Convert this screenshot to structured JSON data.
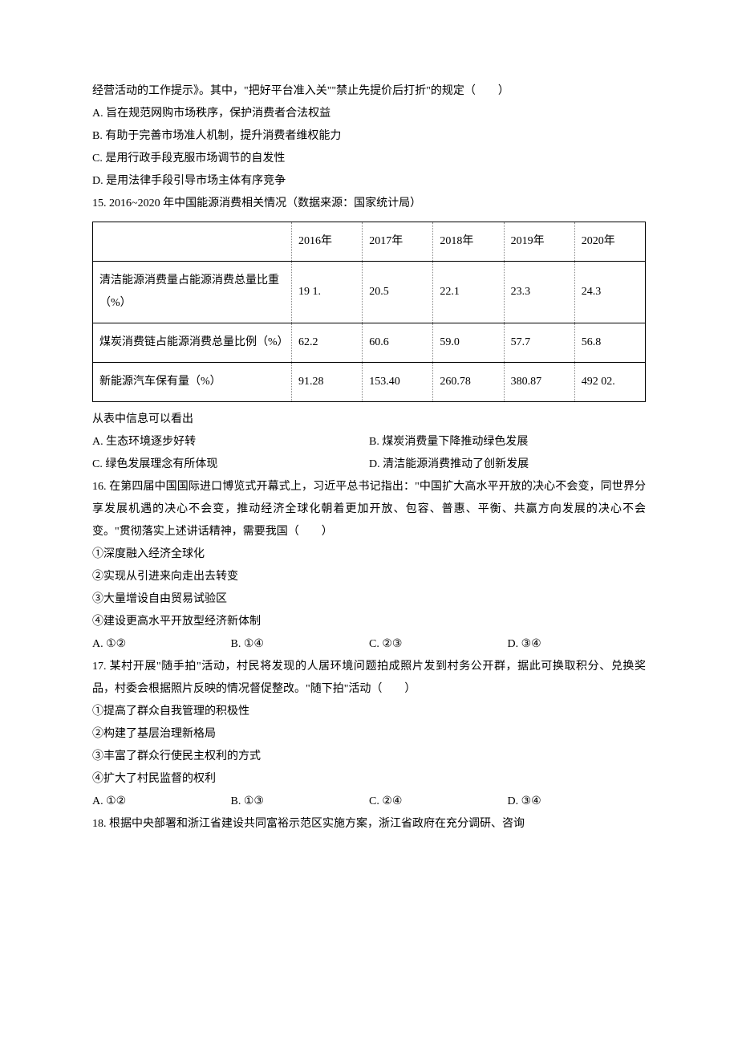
{
  "q14": {
    "intro": "经营活动的工作提示》。其中，\"把好平台准入关\"\"禁止先提价后打折\"的规定（　　）",
    "optA": "A. 旨在规范网购市场秩序，保护消费者合法权益",
    "optB": "B. 有助于完善市场准人机制，提升消费者维权能力",
    "optC": "C. 是用行政手段克服市场调节的自发性",
    "optD": "D. 是用法律手段引导市场主体有序竞争"
  },
  "q15": {
    "title": "15. 2016~2020 年中国能源消费相关情况（数据来源：国家统计局）",
    "table": {
      "header": {
        "blank": "",
        "y2016": "2016年",
        "y2017": "2017年",
        "y2018": "2018年",
        "y2019": "2019年",
        "y2020": "2020年"
      },
      "row1": {
        "label": "清洁能源消费量占能源消费总量比重（%）",
        "v2016": "19 1.",
        "v2017": "20.5",
        "v2018": "22.1",
        "v2019": "23.3",
        "v2020": "24.3"
      },
      "row2": {
        "label": "煤炭消费链占能源消费总量比例（%）",
        "v2016": "62.2",
        "v2017": "60.6",
        "v2018": "59.0",
        "v2019": "57.7",
        "v2020": "56.8"
      },
      "row3": {
        "label": "新能源汽车保有量（%）",
        "v2016": "91.28",
        "v2017": "153.40",
        "v2018": "260.78",
        "v2019": "380.87",
        "v2020": "492 02."
      }
    },
    "lead": "从表中信息可以看出",
    "optA": "A. 生态环境逐步好转",
    "optB": "B. 煤炭消费量下降推动绿色发展",
    "optC": "C. 绿色发展理念有所体现",
    "optD": "D. 清洁能源消费推动了创新发展"
  },
  "q16": {
    "stem": "16. 在第四届中国国际进口博览式开幕式上，习近平总书记指出：\"中国扩大高水平开放的决心不会变，同世界分享发展机遇的决心不会变，推动经济全球化朝着更加开放、包容、普惠、平衡、共赢方向发展的决心不会变。\"贯彻落实上述讲话精神，需要我国（　　）",
    "s1": "①深度融入经济全球化",
    "s2": "②实现从引进来向走出去转变",
    "s3": "③大量增设自由贸易试验区",
    "s4": "④建设更高水平开放型经济新体制",
    "optA": "A. ①②",
    "optB": "B. ①④",
    "optC": "C. ②③",
    "optD": "D. ③④"
  },
  "q17": {
    "stem": "17. 某村开展\"随手拍\"活动，村民将发现的人居环境问题拍成照片发到村务公开群，据此可换取积分、兑换奖品，村委会根据照片反映的情况督促整改。\"随下拍\"活动（　　）",
    "s1": "①提高了群众自我管理的积极性",
    "s2": "②构建了基层治理新格局",
    "s3": "③丰富了群众行使民主权利的方式",
    "s4": "④扩大了村民监督的权利",
    "optA": "A. ①②",
    "optB": "B. ①③",
    "optC": "C. ②④",
    "optD": "D. ③④"
  },
  "q18": {
    "stem": "18. 根据中央部署和浙江省建设共同富裕示范区实施方案，浙江省政府在充分调研、咨询"
  }
}
